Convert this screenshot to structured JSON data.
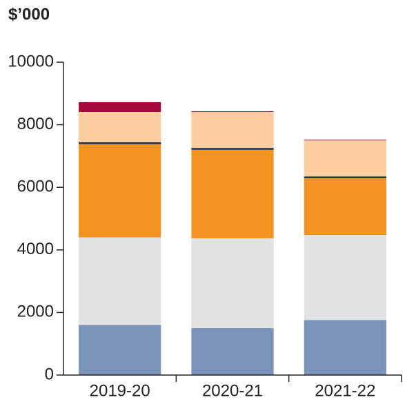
{
  "chart_data": {
    "type": "stacked_bar",
    "title": "$’000",
    "categories": [
      "2019-20",
      "2020-21",
      "2021-22"
    ],
    "series": [
      {
        "color": "#7a93b8",
        "values": [
          1600,
          1500,
          1760
        ]
      },
      {
        "color": "#e1e2e4",
        "values": [
          2800,
          2870,
          2720
        ]
      },
      {
        "color": "#f39322",
        "values": [
          2980,
          2830,
          1810
        ]
      },
      {
        "color": "#1f3550",
        "values": [
          60,
          60,
          60
        ]
      },
      {
        "color": "#fccd9e",
        "values": [
          970,
          1150,
          1150
        ]
      },
      {
        "color": "#a50a3f",
        "values": [
          310,
          20,
          20
        ]
      }
    ],
    "ylim": [
      0,
      10000
    ],
    "yticks": [
      0,
      2000,
      4000,
      6000,
      8000,
      10000
    ],
    "grid": false
  }
}
